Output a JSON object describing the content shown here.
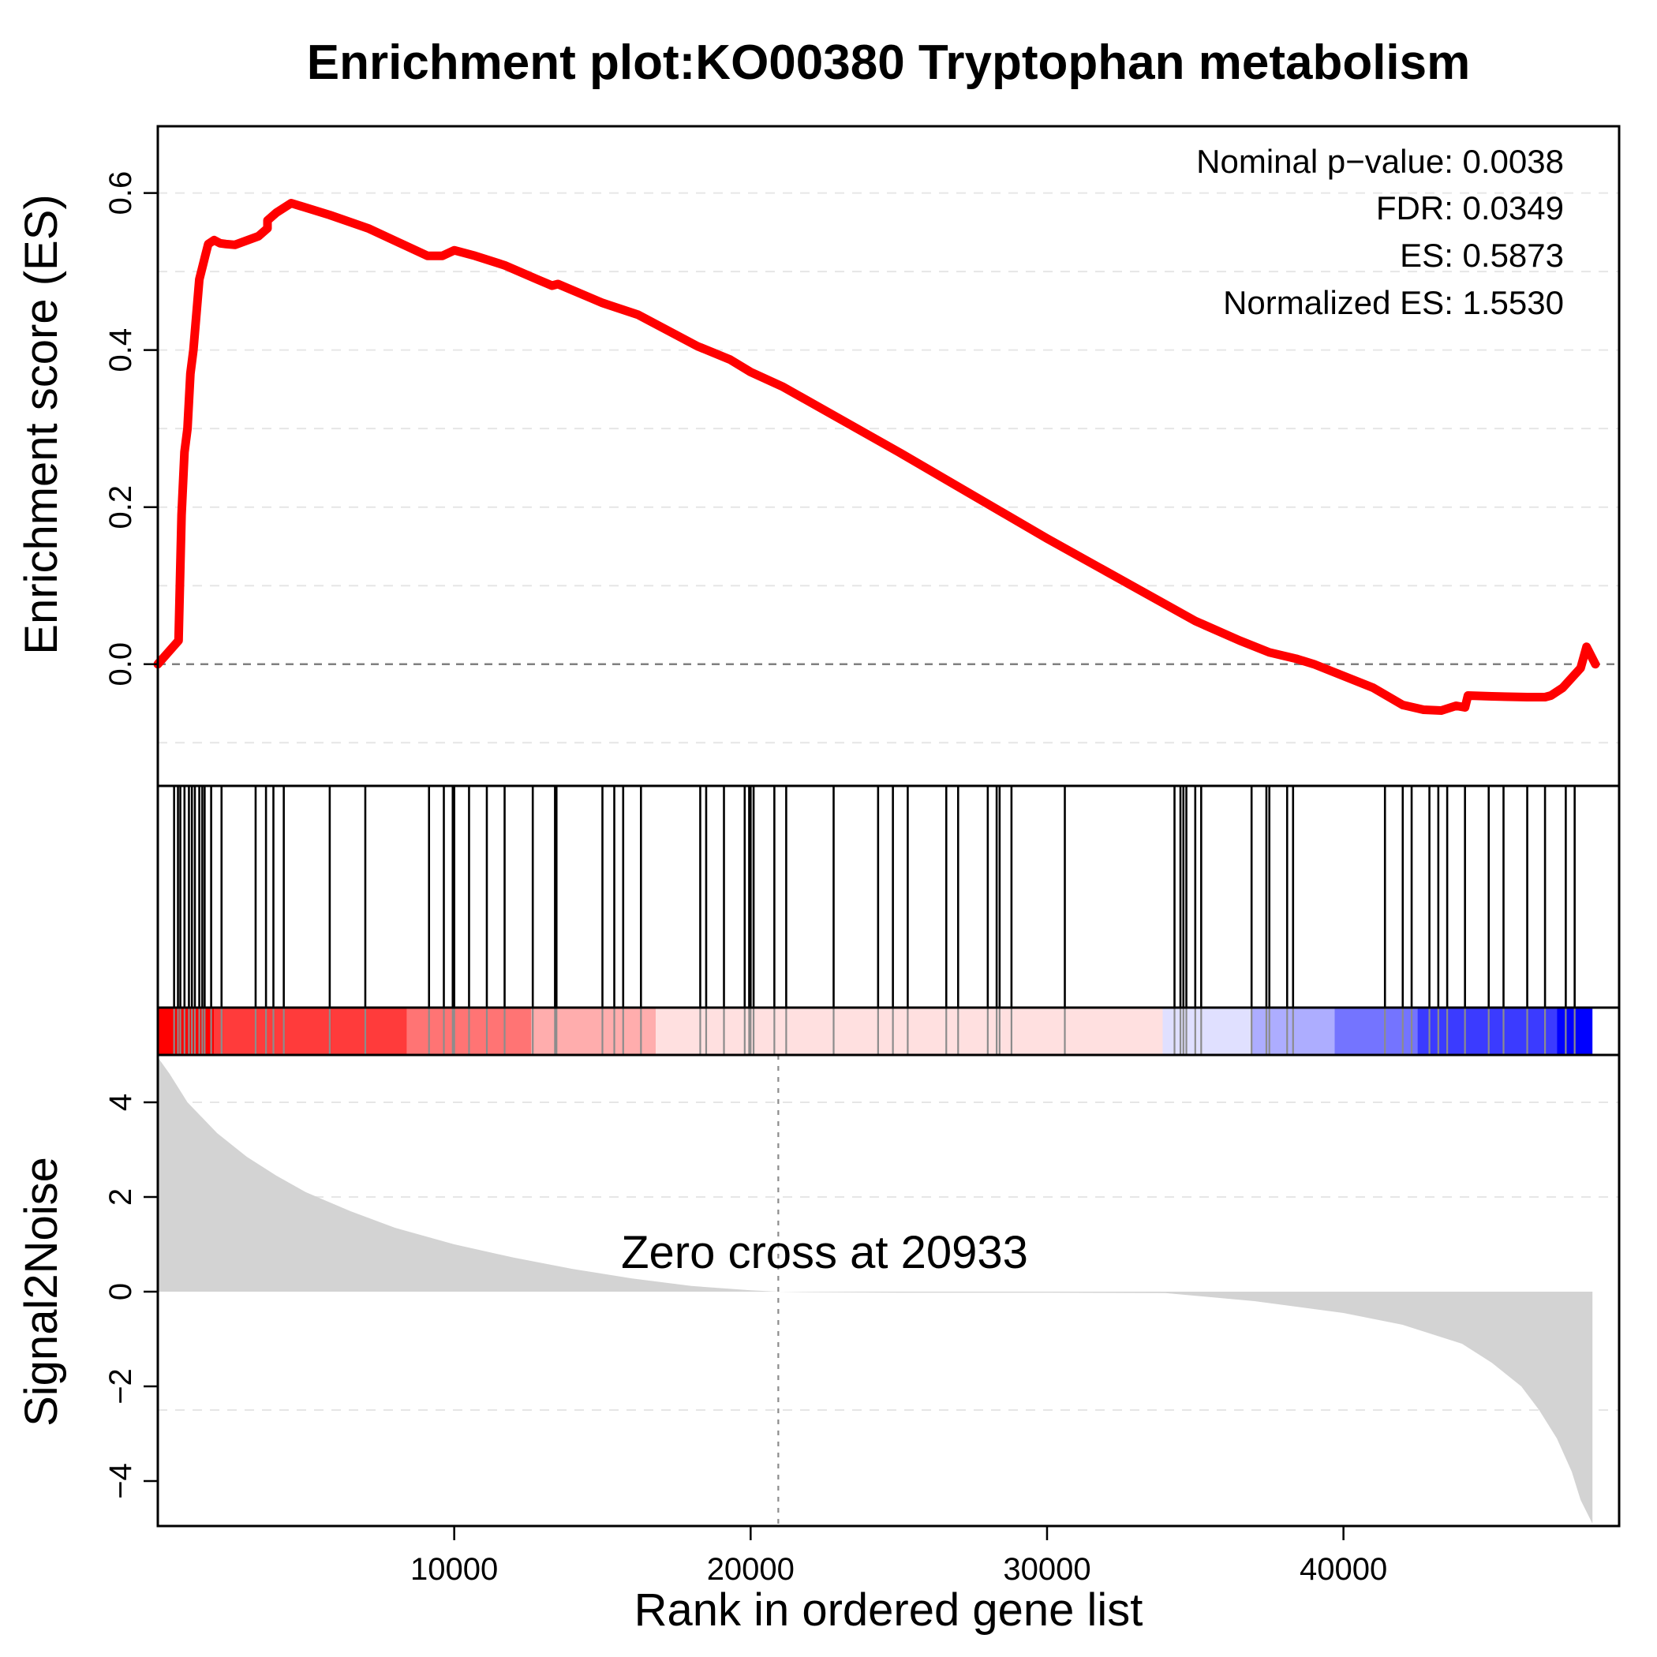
{
  "chart_data": {
    "type": "line",
    "title": "Enrichment plot:KO00380 Tryptophan metabolism",
    "xlabel": "Rank in ordered gene list",
    "xlim": [
      0,
      49300
    ],
    "x_ticks": [
      10000,
      20000,
      30000,
      40000
    ],
    "x_tick_labels": [
      "10000",
      "20000",
      "30000",
      "40000"
    ],
    "stats": [
      "Nominal p−value: 0.0038",
      "FDR: 0.0349",
      "ES: 0.5873",
      "Normalized ES: 1.5530"
    ],
    "enrichment": {
      "ylabel": "Enrichment score (ES)",
      "ylim": [
        -0.155,
        0.685
      ],
      "y_ticks": [
        0.0,
        0.2,
        0.4,
        0.6
      ],
      "y_tick_labels": [
        "0.0",
        "0.2",
        "0.4",
        "0.6"
      ],
      "gridlines": [
        0.6,
        0.5,
        0.4,
        0.3,
        0.2,
        0.1,
        -0.1
      ],
      "zero_line": 0,
      "color": "#ff0000",
      "x": [
        0,
        700,
        800,
        900,
        1000,
        1100,
        1200,
        1400,
        1600,
        1700,
        1900,
        2100,
        2300,
        2600,
        3400,
        3700,
        3700,
        4000,
        4500,
        5800,
        7100,
        9100,
        9600,
        10000,
        10700,
        11700,
        12800,
        13300,
        13500,
        15000,
        16200,
        18200,
        19300,
        20000,
        21100,
        25000,
        30000,
        35000,
        36500,
        37500,
        38400,
        39000,
        41000,
        42000,
        42700,
        43300,
        43800,
        44100,
        44200,
        45000,
        46200,
        46800,
        47000,
        47400,
        48000,
        48200,
        48500
      ],
      "y": [
        0,
        0.03,
        0.19,
        0.27,
        0.3,
        0.37,
        0.4,
        0.49,
        0.52,
        0.535,
        0.54,
        0.536,
        0.535,
        0.534,
        0.545,
        0.555,
        0.565,
        0.575,
        0.587,
        0.572,
        0.555,
        0.52,
        0.52,
        0.527,
        0.52,
        0.508,
        0.49,
        0.482,
        0.484,
        0.46,
        0.445,
        0.405,
        0.388,
        0.372,
        0.353,
        0.27,
        0.16,
        0.055,
        0.03,
        0.015,
        0.007,
        0,
        -0.03,
        -0.052,
        -0.058,
        -0.059,
        -0.053,
        -0.055,
        -0.04,
        -0.041,
        -0.042,
        -0.042,
        -0.04,
        -0.03,
        -0.005,
        0.022,
        0
      ]
    },
    "hits": [
      550,
      680,
      760,
      900,
      1050,
      1150,
      1250,
      1400,
      1500,
      1580,
      1800,
      2150,
      3300,
      3650,
      3900,
      4250,
      5800,
      7000,
      9150,
      9650,
      9950,
      10000,
      10500,
      11100,
      11700,
      12650,
      13400,
      13450,
      15000,
      15400,
      15700,
      16300,
      18300,
      18500,
      19100,
      19800,
      19950,
      20000,
      20100,
      20800,
      21200,
      22800,
      24300,
      24800,
      25300,
      26600,
      27000,
      28000,
      28300,
      28400,
      28800,
      30600,
      34300,
      34500,
      34600,
      34700,
      35000,
      35200,
      36900,
      37400,
      37500,
      38100,
      38300,
      41400,
      42000,
      42300,
      42900,
      43200,
      43500,
      44100,
      44900,
      45400,
      46200,
      46800,
      47500,
      47800
    ],
    "ranking_bar": {
      "x_end": 48400,
      "segments": [
        {
          "end": 1900,
          "color": "#ff0000"
        },
        {
          "end": 8400,
          "color": "#ff3b3b"
        },
        {
          "end": 12600,
          "color": "#ff7474"
        },
        {
          "end": 16800,
          "color": "#ffadad"
        },
        {
          "end": 33900,
          "color": "#ffe0e0"
        },
        {
          "end": 36900,
          "color": "#e0e0ff"
        },
        {
          "end": 39700,
          "color": "#adadff"
        },
        {
          "end": 42500,
          "color": "#7474ff"
        },
        {
          "end": 47200,
          "color": "#3b3bff"
        },
        {
          "end": 48400,
          "color": "#0000ff"
        }
      ]
    },
    "signal": {
      "ylabel": "Signal2Noise",
      "ylim": [
        -4.95,
        5.0
      ],
      "y_ticks": [
        4,
        2,
        0,
        -2,
        -4
      ],
      "y_tick_labels": [
        "4",
        "2",
        "0",
        "−2",
        "−4"
      ],
      "gridlines": [
        4,
        2,
        -2.5
      ],
      "fill_color": "#d3d3d3",
      "zero_cross": 20933,
      "zero_cross_label": "Zero cross at 20933",
      "x": [
        0,
        400,
        1000,
        2000,
        3000,
        4000,
        5000,
        6500,
        8000,
        10000,
        12000,
        14000,
        16000,
        18000,
        20000,
        20933,
        22000,
        25000,
        30000,
        34000,
        37000,
        40000,
        42000,
        44000,
        45000,
        46000,
        46600,
        47200,
        47700,
        48000,
        48400
      ],
      "y": [
        4.95,
        4.6,
        4.0,
        3.35,
        2.85,
        2.45,
        2.1,
        1.7,
        1.35,
        1.0,
        0.72,
        0.48,
        0.28,
        0.12,
        0.03,
        0,
        -0.01,
        -0.02,
        -0.02,
        -0.03,
        -0.2,
        -0.45,
        -0.7,
        -1.1,
        -1.5,
        -2.0,
        -2.5,
        -3.1,
        -3.8,
        -4.4,
        -4.9
      ]
    }
  }
}
